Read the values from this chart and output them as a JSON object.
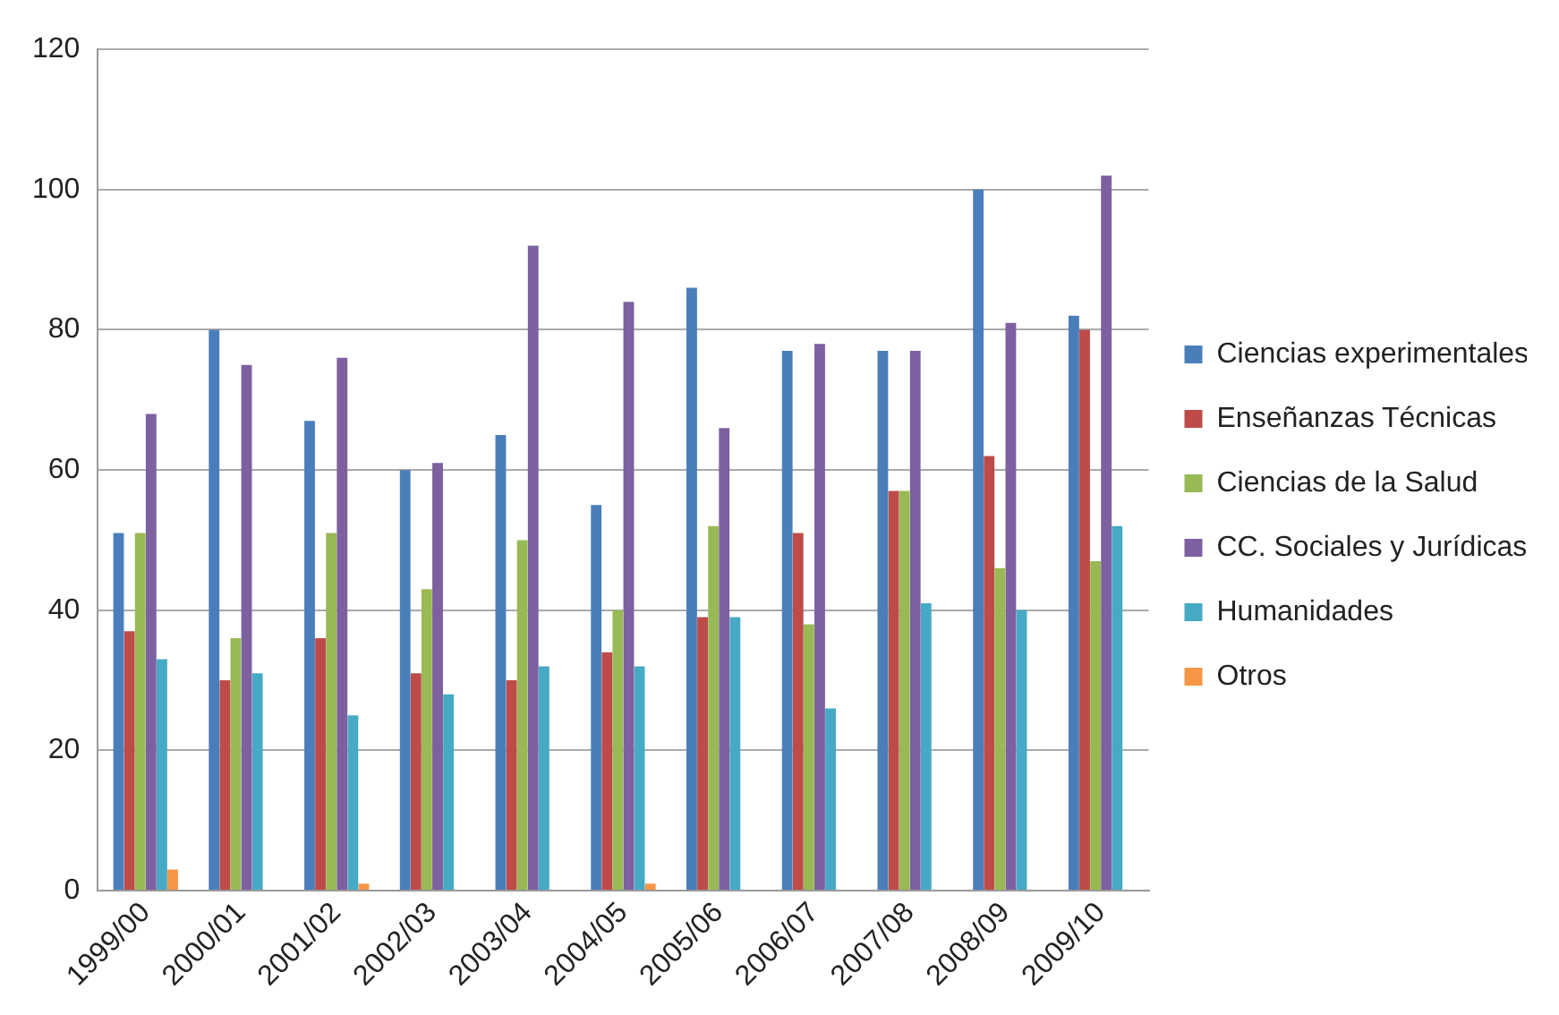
{
  "chart_data": {
    "type": "bar",
    "categories": [
      "1999/00",
      "2000/01",
      "2001/02",
      "2002/03",
      "2003/04",
      "2004/05",
      "2005/06",
      "2006/07",
      "2007/08",
      "2008/09",
      "2009/10"
    ],
    "series": [
      {
        "name": "Ciencias experimentales",
        "color": "#4a7ebb",
        "values": [
          51,
          80,
          67,
          60,
          65,
          55,
          86,
          77,
          77,
          100,
          82
        ]
      },
      {
        "name": "Enseñanzas Técnicas",
        "color": "#be4b48",
        "values": [
          37,
          30,
          36,
          31,
          30,
          34,
          39,
          51,
          57,
          62,
          80
        ]
      },
      {
        "name": "Ciencias de la Salud",
        "color": "#98b954",
        "values": [
          51,
          36,
          51,
          43,
          50,
          40,
          52,
          38,
          57,
          46,
          47
        ]
      },
      {
        "name": "CC. Sociales y Jurídicas",
        "color": "#7d60a0",
        "values": [
          68,
          75,
          76,
          61,
          92,
          84,
          66,
          78,
          77,
          81,
          102
        ]
      },
      {
        "name": "Humanidades",
        "color": "#46aac5",
        "values": [
          33,
          31,
          25,
          28,
          32,
          32,
          39,
          26,
          41,
          40,
          52
        ]
      },
      {
        "name": "Otros",
        "color": "#f79646",
        "values": [
          3,
          0,
          1,
          0,
          0,
          1,
          0,
          0,
          0,
          0,
          0
        ]
      }
    ],
    "ylim": [
      0,
      120
    ],
    "yticks": [
      0,
      20,
      40,
      60,
      80,
      100,
      120
    ],
    "grid": "y",
    "legend": "right"
  }
}
